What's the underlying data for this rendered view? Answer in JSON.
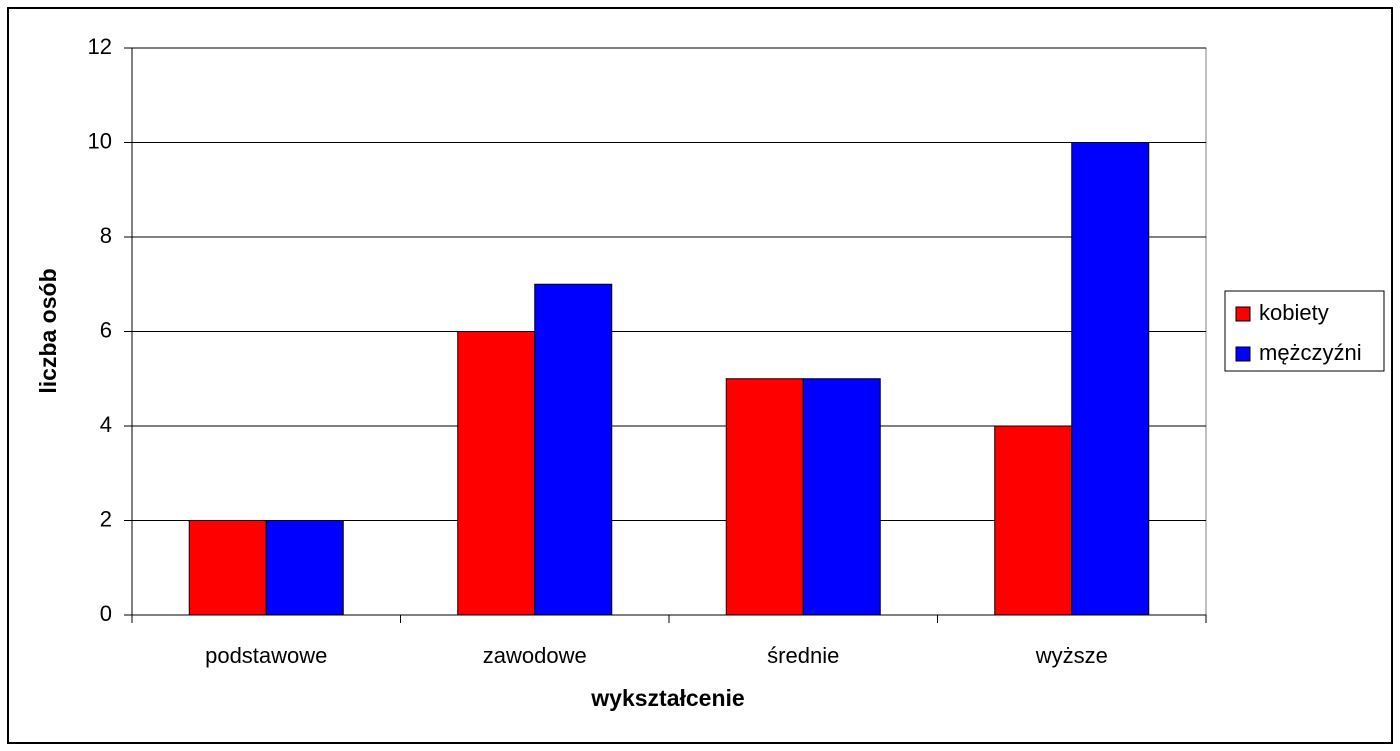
{
  "chart_data": {
    "type": "bar",
    "x_label": "wykształcenie",
    "y_label": "liczba osób",
    "categories": [
      "podstawowe",
      "zawodowe",
      "średnie",
      "wyższe"
    ],
    "series": [
      {
        "name": "kobiety",
        "color": "#ff0000",
        "values": [
          2,
          6,
          5,
          4
        ]
      },
      {
        "name": "mężczyźni",
        "color": "#0000ff",
        "values": [
          2,
          7,
          5,
          10
        ]
      }
    ],
    "ylim": [
      0,
      12
    ],
    "yticks": [
      0,
      2,
      4,
      6,
      8,
      10,
      12
    ],
    "grid": true,
    "legend": "right"
  }
}
